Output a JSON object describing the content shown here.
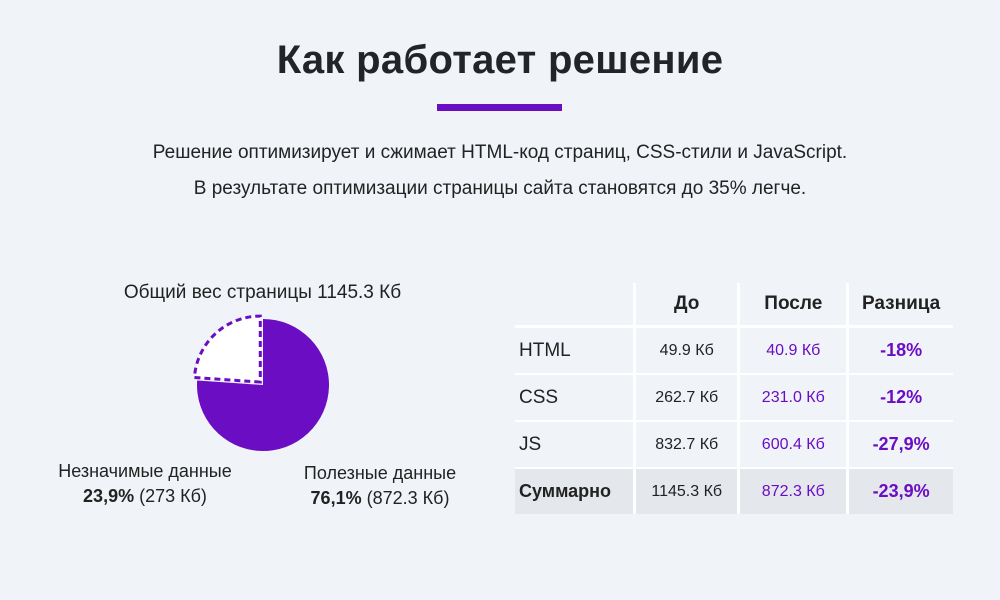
{
  "header": {
    "title": "Как работает решение",
    "line1": "Решение оптимизирует и сжимает HTML-код страниц, CSS-стили и JavaScript.",
    "line2": "В результате оптимизации страницы сайта становятся до 35% легче."
  },
  "colors": {
    "accent": "#6a0dc3",
    "background": "#f0f4f8",
    "total_row": "#e4e8ec"
  },
  "chart_data": {
    "type": "pie",
    "title": "Общий вес страницы 1145.3 Кб",
    "slices": [
      {
        "name": "Незначимые данные",
        "value": 23.9,
        "percent_label": "23,9%",
        "size_label": "(273 Кб)",
        "style": "dashed-outline"
      },
      {
        "name": "Полезные данные",
        "value": 76.1,
        "percent_label": "76,1%",
        "size_label": "(872.3 Кб)",
        "style": "filled"
      }
    ]
  },
  "table": {
    "headers": [
      "",
      "До",
      "После",
      "Разница"
    ],
    "rows": [
      {
        "label": "HTML",
        "before": "49.9 Кб",
        "after": "40.9 Кб",
        "diff": "-18%"
      },
      {
        "label": "CSS",
        "before": "262.7 Кб",
        "after": "231.0 Кб",
        "diff": "-12%"
      },
      {
        "label": "JS",
        "before": "832.7 Кб",
        "after": "600.4 Кб",
        "diff": "-27,9%"
      },
      {
        "label": "Суммарно",
        "before": "1145.3 Кб",
        "after": "872.3 Кб",
        "diff": "-23,9%"
      }
    ]
  }
}
